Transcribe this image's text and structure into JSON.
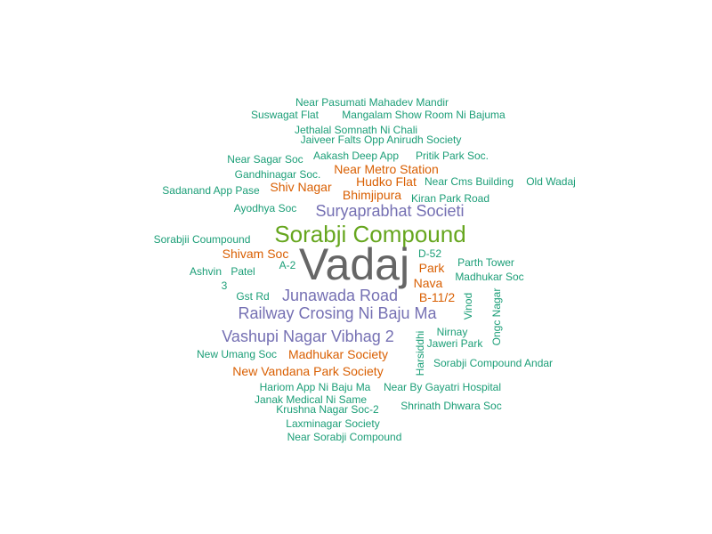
{
  "colors": {
    "teal": "#1b9e77",
    "orange": "#d95f02",
    "purple": "#7570b3",
    "green": "#66a61e",
    "gray": "#666666"
  },
  "words": [
    {
      "text": "Near Pasumati Mahadev Mandir",
      "color": "teal"
    },
    {
      "text": "Suswagat Flat",
      "color": "teal"
    },
    {
      "text": "Mangalam Show Room Ni Bajuma",
      "color": "teal"
    },
    {
      "text": "Jethalal Somnath Ni Chali",
      "color": "teal"
    },
    {
      "text": "Jaiveer Falts Opp Anirudh Society",
      "color": "teal"
    },
    {
      "text": "Near Sagar Soc",
      "color": "teal"
    },
    {
      "text": "Aakash Deep App",
      "color": "teal"
    },
    {
      "text": "Pritik Park Soc.",
      "color": "teal"
    },
    {
      "text": "Near Metro Station",
      "color": "orange"
    },
    {
      "text": "Gandhinagar Soc.",
      "color": "teal"
    },
    {
      "text": "Hudko Flat",
      "color": "orange"
    },
    {
      "text": "Near Cms Building",
      "color": "teal"
    },
    {
      "text": "Old Wadaj",
      "color": "teal"
    },
    {
      "text": "Shiv Nagar",
      "color": "orange"
    },
    {
      "text": "Sadanand App Pase",
      "color": "teal"
    },
    {
      "text": "Bhimjipura",
      "color": "orange"
    },
    {
      "text": "Kiran Park Road",
      "color": "teal"
    },
    {
      "text": "Ayodhya Soc",
      "color": "teal"
    },
    {
      "text": "Suryaprabhat Societi",
      "color": "purple"
    },
    {
      "text": "Sorabji Compound",
      "color": "green"
    },
    {
      "text": "Sorabjii Coumpound",
      "color": "teal"
    },
    {
      "text": "Vadaj",
      "color": "gray"
    },
    {
      "text": "Shivam Soc",
      "color": "orange"
    },
    {
      "text": "D-52",
      "color": "teal"
    },
    {
      "text": "A-2",
      "color": "teal"
    },
    {
      "text": "Parth Tower",
      "color": "teal"
    },
    {
      "text": "Park",
      "color": "orange"
    },
    {
      "text": "Ashvin",
      "color": "teal"
    },
    {
      "text": "Patel",
      "color": "teal"
    },
    {
      "text": "Madhukar Soc",
      "color": "teal"
    },
    {
      "text": "Nava",
      "color": "orange"
    },
    {
      "text": "3",
      "color": "teal"
    },
    {
      "text": "Ongc Nagar",
      "color": "teal"
    },
    {
      "text": "Gst Rd",
      "color": "teal"
    },
    {
      "text": "Junawada Road",
      "color": "purple"
    },
    {
      "text": "B-11/2",
      "color": "orange"
    },
    {
      "text": "Vinod",
      "color": "teal"
    },
    {
      "text": "Railway Crosing Ni Baju Ma",
      "color": "purple"
    },
    {
      "text": "Nirnay",
      "color": "teal"
    },
    {
      "text": "Vashupi Nagar Vibhag 2",
      "color": "purple"
    },
    {
      "text": "Harsiddhi",
      "color": "teal"
    },
    {
      "text": "Jaweri Park",
      "color": "teal"
    },
    {
      "text": "New Umang Soc",
      "color": "teal"
    },
    {
      "text": "Madhukar Society",
      "color": "orange"
    },
    {
      "text": "Sorabji Compound Andar",
      "color": "teal"
    },
    {
      "text": "New Vandana Park Society",
      "color": "orange"
    },
    {
      "text": "Hariom App Ni Baju Ma",
      "color": "teal"
    },
    {
      "text": "Near By Gayatri Hospital",
      "color": "teal"
    },
    {
      "text": "Janak Medical Ni Same",
      "color": "teal"
    },
    {
      "text": "Krushna Nagar Soc-2",
      "color": "teal"
    },
    {
      "text": "Shrinath Dhwara Soc",
      "color": "teal"
    },
    {
      "text": "Laxminagar Society",
      "color": "teal"
    },
    {
      "text": "Near Sorabji Compound",
      "color": "teal"
    }
  ]
}
